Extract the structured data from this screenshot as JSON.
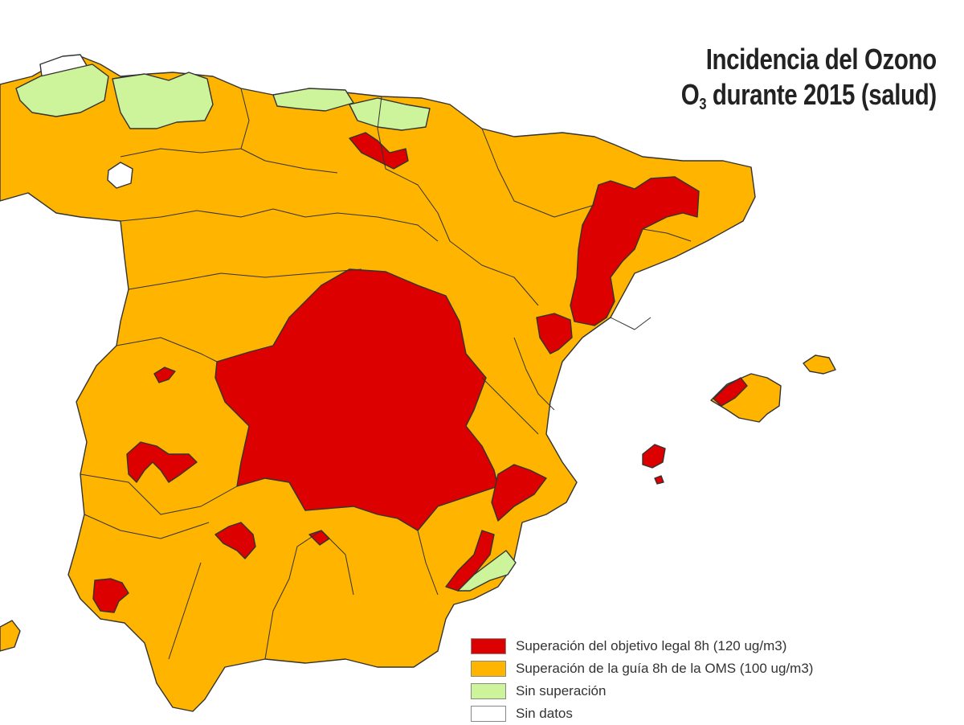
{
  "title": {
    "line1": "Incidencia del Ozono",
    "line2_prefix": "O",
    "line2_sub": "3",
    "line2_rest": " durante 2015 (salud)"
  },
  "colors": {
    "red": "#dd0000",
    "orange": "#ffb400",
    "green": "#cdf49a",
    "white": "#ffffff"
  },
  "legend": [
    {
      "label": "Superación del objetivo legal 8h (120 ug/m3)",
      "color": "#dd0000"
    },
    {
      "label": "Superación de la guía 8h de la OMS (100 ug/m3)",
      "color": "#ffb400"
    },
    {
      "label": "Sin superación",
      "color": "#cdf49a"
    },
    {
      "label": "Sin datos",
      "color": "#ffffff"
    }
  ]
}
